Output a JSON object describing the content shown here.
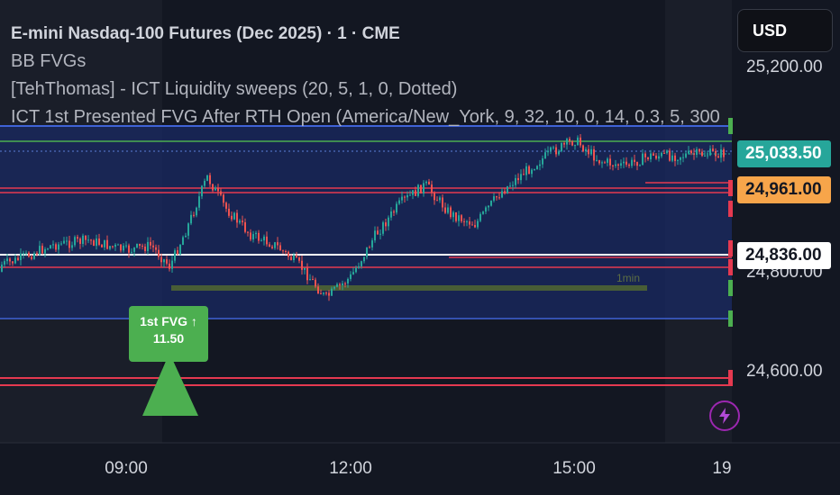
{
  "legend": {
    "title": "E-mini Nasdaq-100 Futures (Dec 2025) · 1 · CME",
    "line2": "BB FVGs",
    "line3": "[TehThomas] - ICT Liquidity sweeps (20, 5, 1, 0, Dotted)",
    "line4": "ICT 1st Presented FVG After RTH Open (America/New_York, 9, 32, 10, 0, 14, 0.3, 5, 300"
  },
  "currency": "USD",
  "price_axis": {
    "labels": [
      "25,200.00",
      "24,800.00",
      "24,600.00"
    ]
  },
  "price_tags": {
    "last": "25,033.50",
    "orange": "24,961.00",
    "white": "24,836.00"
  },
  "time_axis": {
    "labels": [
      "09:00",
      "12:00",
      "15:00",
      "19"
    ]
  },
  "fvg_label": {
    "line1": "1st FVG ↑",
    "line2": "11.50"
  },
  "timeframe_label": "1min",
  "colors": {
    "background": "#131722",
    "up": "#26a69a",
    "down": "#ef5350",
    "fvg_box": "#1a2a63",
    "accent_green": "#4caf50",
    "accent_orange": "#f7a54a",
    "accent_red": "#e53950"
  },
  "icons": {
    "signal": "triangle-up-icon",
    "alert": "lightning-icon"
  },
  "chart_data": {
    "type": "candlestick",
    "symbol": "E-mini Nasdaq-100 Futures (Dec 2025)",
    "interval": "1",
    "exchange": "CME",
    "y_axis_labels": [
      25200,
      24800,
      24600
    ],
    "ylim": [
      24500,
      25300
    ],
    "x_axis_labels": [
      "09:00",
      "12:00",
      "15:00",
      "19"
    ],
    "close_path": [
      [
        "07:00",
        24810
      ],
      [
        "07:30",
        24830
      ],
      [
        "08:00",
        24860
      ],
      [
        "08:30",
        24870
      ],
      [
        "09:00",
        24850
      ],
      [
        "09:20",
        24860
      ],
      [
        "09:35",
        24820
      ],
      [
        "09:50",
        24900
      ],
      [
        "10:05",
        24990
      ],
      [
        "10:20",
        24930
      ],
      [
        "10:40",
        24880
      ],
      [
        "11:00",
        24860
      ],
      [
        "11:20",
        24820
      ],
      [
        "11:40",
        24760
      ],
      [
        "12:00",
        24800
      ],
      [
        "12:20",
        24880
      ],
      [
        "12:40",
        24940
      ],
      [
        "13:00",
        24975
      ],
      [
        "13:20",
        24920
      ],
      [
        "13:40",
        24900
      ],
      [
        "14:00",
        24960
      ],
      [
        "14:20",
        25000
      ],
      [
        "14:40",
        25035
      ],
      [
        "15:00",
        25060
      ],
      [
        "15:20",
        25020
      ],
      [
        "15:40",
        25010
      ],
      [
        "16:00",
        25030
      ],
      [
        "16:20",
        25030
      ],
      [
        "16:50",
        25034
      ]
    ],
    "levels": [
      {
        "name": "last",
        "value": 25033.5
      },
      {
        "name": "liquidity-high",
        "value": 24961.0
      },
      {
        "name": "reference",
        "value": 24836.0
      },
      {
        "name": "liquidity-low",
        "value": 24600.0
      }
    ],
    "annotations": [
      "1st FVG ↑",
      "11.50",
      "1min"
    ]
  }
}
